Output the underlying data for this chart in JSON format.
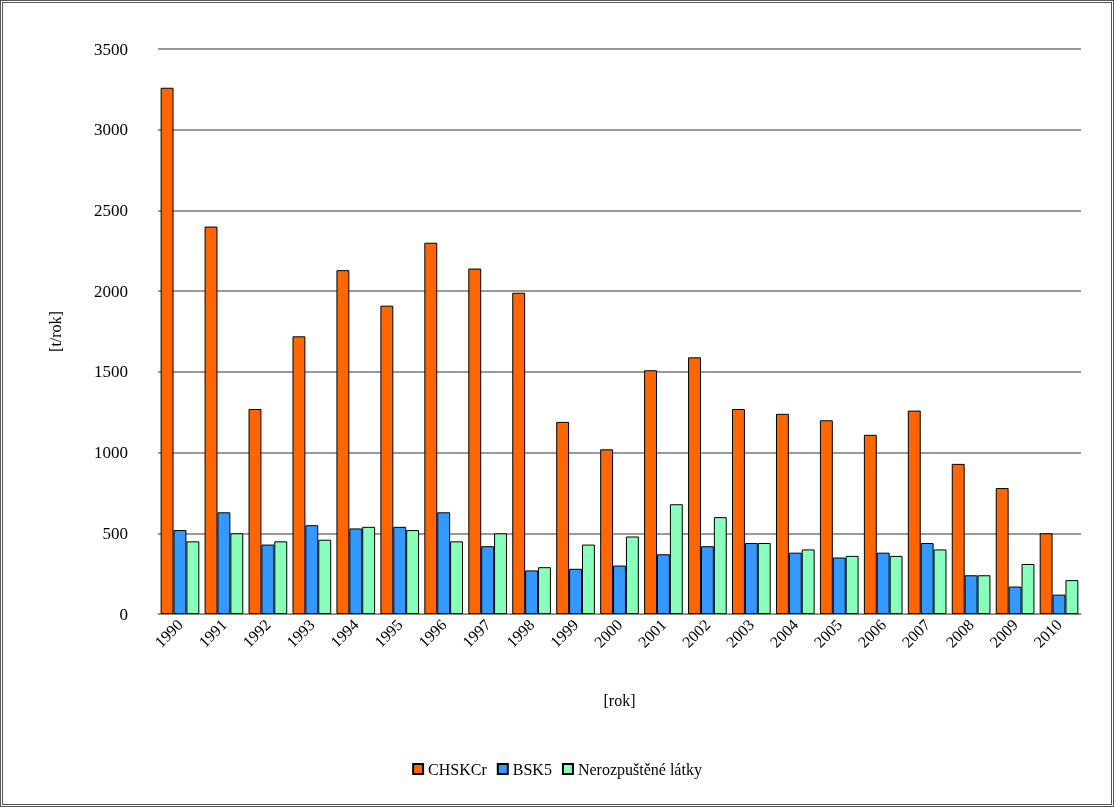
{
  "chart_data": {
    "type": "bar",
    "xlabel": "[rok]",
    "ylabel": "[t/rok]",
    "categories": [
      "1990",
      "1991",
      "1992",
      "1993",
      "1994",
      "1995",
      "1996",
      "1997",
      "1998",
      "1999",
      "2000",
      "2001",
      "2002",
      "2003",
      "2004",
      "2005",
      "2006",
      "2007",
      "2008",
      "2009",
      "2010"
    ],
    "series": [
      {
        "name": "CHSKCr",
        "color": "#ff6600",
        "values": [
          3260,
          2400,
          1270,
          1720,
          2130,
          1910,
          2300,
          2140,
          1990,
          1190,
          1020,
          1510,
          1590,
          1270,
          1240,
          1200,
          1110,
          1260,
          930,
          780,
          500
        ]
      },
      {
        "name": "BSK5",
        "color": "#3399ff",
        "values": [
          520,
          630,
          430,
          550,
          530,
          540,
          630,
          420,
          270,
          280,
          300,
          370,
          420,
          440,
          380,
          350,
          380,
          440,
          240,
          170,
          120
        ]
      },
      {
        "name": "Nerozpuštěné látky",
        "color": "#88ffbb",
        "values": [
          450,
          500,
          450,
          460,
          540,
          520,
          450,
          500,
          290,
          430,
          480,
          680,
          600,
          440,
          400,
          360,
          360,
          400,
          240,
          310,
          210
        ]
      }
    ],
    "ylim": [
      0,
      3500
    ],
    "yticks": [
      0,
      500,
      1000,
      1500,
      2000,
      2500,
      3000,
      3500
    ],
    "grid": "y",
    "legend": "bottom"
  }
}
